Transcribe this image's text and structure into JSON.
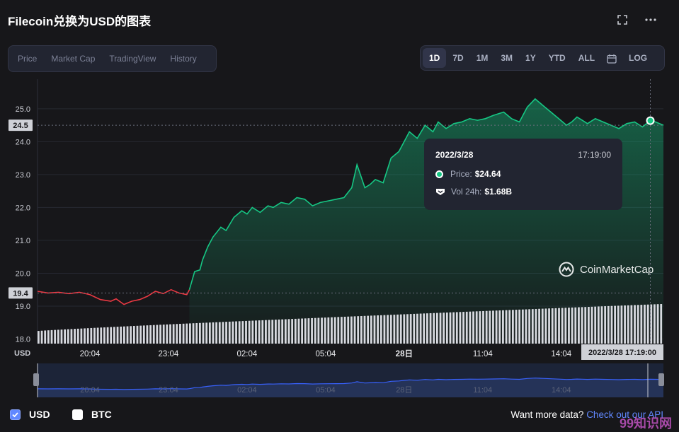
{
  "title": "Filecoin兑换为USD的图表",
  "header_icons": [
    "fullscreen-icon",
    "more-icon"
  ],
  "left_tabs": [
    {
      "label": "Price",
      "active": false
    },
    {
      "label": "Market Cap",
      "active": false
    },
    {
      "label": "TradingView",
      "active": false
    },
    {
      "label": "History",
      "active": false
    }
  ],
  "range_tabs": [
    {
      "label": "1D",
      "active": true
    },
    {
      "label": "7D",
      "active": false
    },
    {
      "label": "1M",
      "active": false
    },
    {
      "label": "3M",
      "active": false
    },
    {
      "label": "1Y",
      "active": false
    },
    {
      "label": "YTD",
      "active": false
    },
    {
      "label": "ALL",
      "active": false
    }
  ],
  "log_label": "LOG",
  "tooltip": {
    "date": "2022/3/28",
    "time": "17:19:00",
    "price_label": "Price:",
    "price_value": "$24.64",
    "vol_label": "Vol 24h:",
    "vol_value": "$1.68B"
  },
  "watermark_text": "CoinMarketCap",
  "legend": [
    {
      "label": "USD",
      "checked": true
    },
    {
      "label": "BTC",
      "checked": false
    }
  ],
  "more_text": "Want more data?",
  "more_link": "Check out our API",
  "corner_mark": "99知识网",
  "colors": {
    "up": "#16c784",
    "down": "#ea3943",
    "navigator": "#3861fb",
    "background": "#17171a"
  },
  "chart_data": {
    "type": "line",
    "currency_label": "USD",
    "y_ticks": [
      25.0,
      24.0,
      23.0,
      22.0,
      21.0,
      20.0,
      19.0,
      18.0
    ],
    "ylim": [
      17.86,
      25.9
    ],
    "open_price": 19.4,
    "open_price_label": "19.4",
    "current_price": 24.5,
    "current_price_label": "24.5",
    "x_ticks": [
      "20:04",
      "23:04",
      "02:04",
      "05:04",
      "28日",
      "11:04",
      "14:04"
    ],
    "x_tick_hours": [
      2.0,
      5.0,
      8.0,
      11.0,
      14.0,
      17.0,
      20.0
    ],
    "x_range_hours": [
      0,
      23.9
    ],
    "hover_label": "2022/3/28 17:19:00",
    "hover_hour": 23.4,
    "series": [
      {
        "x_hours": [
          0,
          0.4,
          0.8,
          1.2,
          1.6,
          2.0,
          2.4,
          2.8,
          3.0,
          3.3,
          3.6,
          3.9,
          4.2,
          4.5,
          4.8,
          5.1,
          5.4,
          5.7,
          5.8,
          6.0,
          6.2,
          6.3,
          6.5,
          6.7,
          7.0,
          7.2,
          7.5,
          7.8,
          8.0,
          8.2,
          8.5,
          8.8,
          9.0,
          9.3,
          9.6,
          9.9,
          10.2,
          10.5,
          10.8,
          11.1,
          11.4,
          11.7,
          12.0,
          12.2,
          12.5,
          12.7,
          12.9,
          13.2,
          13.5,
          13.8,
          14.0,
          14.2,
          14.5,
          14.8,
          15.1,
          15.3,
          15.6,
          15.9,
          16.2,
          16.5,
          16.8,
          17.1,
          17.4,
          17.8,
          18.1,
          18.4,
          18.7,
          19.0,
          19.3,
          19.6,
          19.9,
          20.2,
          20.4,
          20.6,
          20.8,
          21.0,
          21.3,
          21.6,
          21.9,
          22.2,
          22.5,
          22.8,
          23.1,
          23.4,
          23.6,
          23.9
        ],
        "values": [
          19.45,
          19.4,
          19.42,
          19.38,
          19.42,
          19.35,
          19.2,
          19.15,
          19.22,
          19.05,
          19.15,
          19.2,
          19.3,
          19.45,
          19.38,
          19.5,
          19.4,
          19.35,
          19.5,
          20.05,
          20.1,
          20.4,
          20.8,
          21.1,
          21.4,
          21.3,
          21.7,
          21.9,
          21.8,
          22.0,
          21.85,
          22.05,
          22.0,
          22.15,
          22.1,
          22.3,
          22.25,
          22.05,
          22.15,
          22.2,
          22.25,
          22.3,
          22.6,
          23.3,
          22.6,
          22.7,
          22.85,
          22.75,
          23.5,
          23.7,
          24.0,
          24.3,
          24.1,
          24.5,
          24.3,
          24.6,
          24.4,
          24.55,
          24.6,
          24.7,
          24.65,
          24.7,
          24.8,
          24.9,
          24.7,
          24.6,
          25.05,
          25.3,
          25.1,
          24.9,
          24.7,
          24.5,
          24.6,
          24.75,
          24.65,
          24.55,
          24.7,
          24.6,
          24.5,
          24.4,
          24.55,
          24.6,
          24.45,
          24.64,
          24.6,
          24.5
        ]
      }
    ],
    "volume": {
      "description": "24h volume bars, rising steadily",
      "start": 0.32,
      "end": 1.0
    }
  }
}
